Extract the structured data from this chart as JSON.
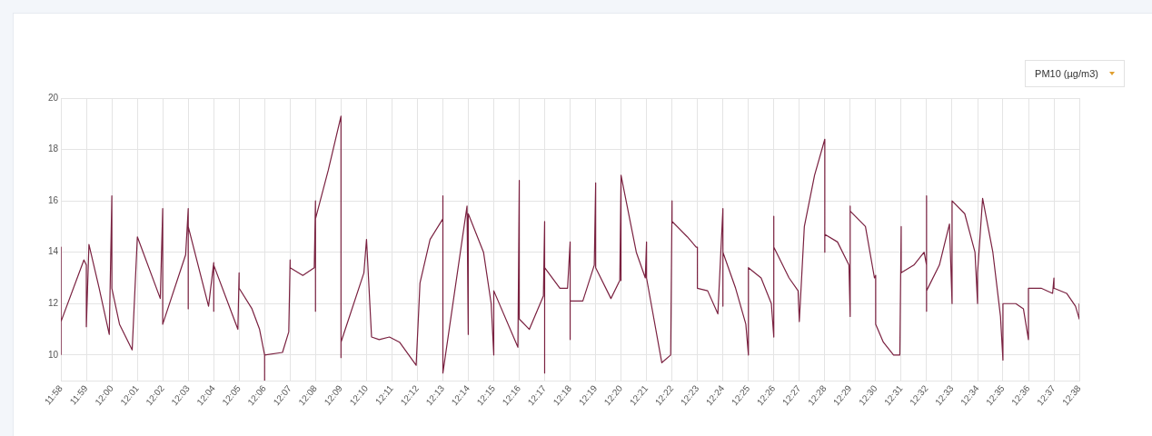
{
  "chart_data": {
    "type": "line",
    "annotations": [
      "PM10 (µg/m3)"
    ],
    "xlim": [
      11.9667,
      12.6333
    ],
    "xticks": [
      {
        "value": 11.9667,
        "label": "11:58"
      },
      {
        "value": 11.9833,
        "label": "11:59"
      },
      {
        "value": 12,
        "label": "12:00"
      },
      {
        "value": 12.0167,
        "label": "12:01"
      },
      {
        "value": 12.0333,
        "label": "12:02"
      },
      {
        "value": 12.05,
        "label": "12:03"
      },
      {
        "value": 12.0667,
        "label": "12:04"
      },
      {
        "value": 12.0833,
        "label": "12:05"
      },
      {
        "value": 12.1,
        "label": "12:06"
      },
      {
        "value": 12.1167,
        "label": "12:07"
      },
      {
        "value": 12.1333,
        "label": "12:08"
      },
      {
        "value": 12.15,
        "label": "12:09"
      },
      {
        "value": 12.1667,
        "label": "12:10"
      },
      {
        "value": 12.1833,
        "label": "12:11"
      },
      {
        "value": 12.2,
        "label": "12:12"
      },
      {
        "value": 12.2167,
        "label": "12:13"
      },
      {
        "value": 12.2333,
        "label": "12:14"
      },
      {
        "value": 12.25,
        "label": "12:15"
      },
      {
        "value": 12.2667,
        "label": "12:16"
      },
      {
        "value": 12.2833,
        "label": "12:17"
      },
      {
        "value": 12.3,
        "label": "12:18"
      },
      {
        "value": 12.3167,
        "label": "12:19"
      },
      {
        "value": 12.3333,
        "label": "12:20"
      },
      {
        "value": 12.35,
        "label": "12:21"
      },
      {
        "value": 12.3667,
        "label": "12:22"
      },
      {
        "value": 12.3833,
        "label": "12:23"
      },
      {
        "value": 12.4,
        "label": "12:24"
      },
      {
        "value": 12.4167,
        "label": "12:25"
      },
      {
        "value": 12.4333,
        "label": "12:26"
      },
      {
        "value": 12.45,
        "label": "12:27"
      },
      {
        "value": 12.4667,
        "label": "12:28"
      },
      {
        "value": 12.4833,
        "label": "12:29"
      },
      {
        "value": 12.5,
        "label": "12:30"
      },
      {
        "value": 12.5167,
        "label": "12:31"
      },
      {
        "value": 12.5333,
        "label": "12:32"
      },
      {
        "value": 12.55,
        "label": "12:33"
      },
      {
        "value": 12.5667,
        "label": "12:34"
      },
      {
        "value": 12.5833,
        "label": "12:35"
      },
      {
        "value": 12.6,
        "label": "12:36"
      },
      {
        "value": 12.6167,
        "label": "12:37"
      },
      {
        "value": 12.6333,
        "label": "12:38"
      }
    ],
    "ylim": [
      9,
      20
    ],
    "yticks": [
      10,
      12,
      14,
      16,
      18,
      20
    ],
    "grid": true,
    "marker": "none",
    "line_style": "solid",
    "series": [
      {
        "color": "#7a2140",
        "x": [
          11.9667,
          11.9667,
          11.9667,
          11.9817,
          11.9833,
          11.9833,
          11.985,
          11.9917,
          11.9983,
          12,
          12,
          12.005,
          12.0133,
          12.0167,
          12.0317,
          12.0333,
          12.0333,
          12.0483,
          12.05,
          12.05,
          12.05,
          12.0633,
          12.0667,
          12.0667,
          12.0667,
          12.0825,
          12.0833,
          12.0833,
          12.0917,
          12.0967,
          12.1,
          12.1,
          12.1,
          12.1117,
          12.1158,
          12.1167,
          12.1167,
          12.125,
          12.1325,
          12.1333,
          12.1333,
          12.1333,
          12.1417,
          12.15,
          12.15,
          12.15,
          12.165,
          12.1667,
          12.17,
          12.175,
          12.1817,
          12.1883,
          12.1992,
          12.2017,
          12.2083,
          12.2167,
          12.2167,
          12.2167,
          12.2325,
          12.2333,
          12.2333,
          12.2433,
          12.2483,
          12.25,
          12.25,
          12.2658,
          12.2667,
          12.2667,
          12.2733,
          12.2825,
          12.2833,
          12.2833,
          12.2833,
          12.2933,
          12.2983,
          12.3,
          12.3,
          12.3,
          12.3083,
          12.3158,
          12.3167,
          12.3167,
          12.3267,
          12.3325,
          12.3333,
          12.3333,
          12.3333,
          12.3433,
          12.3492,
          12.35,
          12.35,
          12.36,
          12.3658,
          12.3667,
          12.3667,
          12.3767,
          12.3825,
          12.3833,
          12.3833,
          12.39,
          12.3967,
          12.4,
          12.4,
          12.4,
          12.4083,
          12.415,
          12.4167,
          12.4167,
          12.425,
          12.4317,
          12.4333,
          12.4333,
          12.4333,
          12.4433,
          12.4492,
          12.45,
          12.4533,
          12.46,
          12.4667,
          12.4667,
          12.4667,
          12.475,
          12.4825,
          12.4833,
          12.4833,
          12.4833,
          12.4933,
          12.4992,
          12.5,
          12.5,
          12.505,
          12.5117,
          12.5158,
          12.5167,
          12.5167,
          12.525,
          12.5317,
          12.5333,
          12.5333,
          12.5333,
          12.5333,
          12.5417,
          12.5483,
          12.55,
          12.55,
          12.5583,
          12.565,
          12.5667,
          12.5667,
          12.57,
          12.5767,
          12.5817,
          12.5833,
          12.5833,
          12.5917,
          12.5967,
          12.6,
          12.6,
          12.6083,
          12.6158,
          12.6167,
          12.6167,
          12.625,
          12.6308,
          12.6333,
          12.6333
        ],
        "values": [
          10,
          14.2,
          11.3,
          13.7,
          13.5,
          11.1,
          14.3,
          12.6,
          10.8,
          16.2,
          12.6,
          11.2,
          10.2,
          14.6,
          12.2,
          15.7,
          11.2,
          13.9,
          15.7,
          11.8,
          15.0,
          11.9,
          13.6,
          11.7,
          13.5,
          11.0,
          13.2,
          12.6,
          11.8,
          11.0,
          10.0,
          9.0,
          10.0,
          10.1,
          10.9,
          13.7,
          13.4,
          13.1,
          13.4,
          16.0,
          11.7,
          15.3,
          17.2,
          19.3,
          9.9,
          10.5,
          13.2,
          14.5,
          10.7,
          10.6,
          10.7,
          10.5,
          9.6,
          12.8,
          14.5,
          15.3,
          16.2,
          9.3,
          15.8,
          10.8,
          15.5,
          14.0,
          12.0,
          10.0,
          12.5,
          10.3,
          16.8,
          11.4,
          11.0,
          12.3,
          15.2,
          9.3,
          13.4,
          12.6,
          12.6,
          14.4,
          10.6,
          12.1,
          12.1,
          13.5,
          16.7,
          13.4,
          12.2,
          12.9,
          16.9,
          12.9,
          17.0,
          14.0,
          13.0,
          14.4,
          13.0,
          9.7,
          10.0,
          16.0,
          15.2,
          14.6,
          14.2,
          14.2,
          12.6,
          12.5,
          11.6,
          15.7,
          11.9,
          14.0,
          12.6,
          11.2,
          10.0,
          13.4,
          13.0,
          12.0,
          10.7,
          15.4,
          14.2,
          13.0,
          12.5,
          11.3,
          15.0,
          17.0,
          18.4,
          14.0,
          14.7,
          14.4,
          13.5,
          11.5,
          15.8,
          15.6,
          15.0,
          13.0,
          13.1,
          11.2,
          10.5,
          10.0,
          10.0,
          15.0,
          13.2,
          13.5,
          14.0,
          13.5,
          16.2,
          11.7,
          12.5,
          13.5,
          15.1,
          12.0,
          16.0,
          15.5,
          14.0,
          12.0,
          13.2,
          16.1,
          14.0,
          11.5,
          9.8,
          12.0,
          12.0,
          11.8,
          10.6,
          12.6,
          12.6,
          12.4,
          13.0,
          12.6,
          12.4,
          11.9,
          11.4,
          12.0
        ]
      }
    ]
  }
}
